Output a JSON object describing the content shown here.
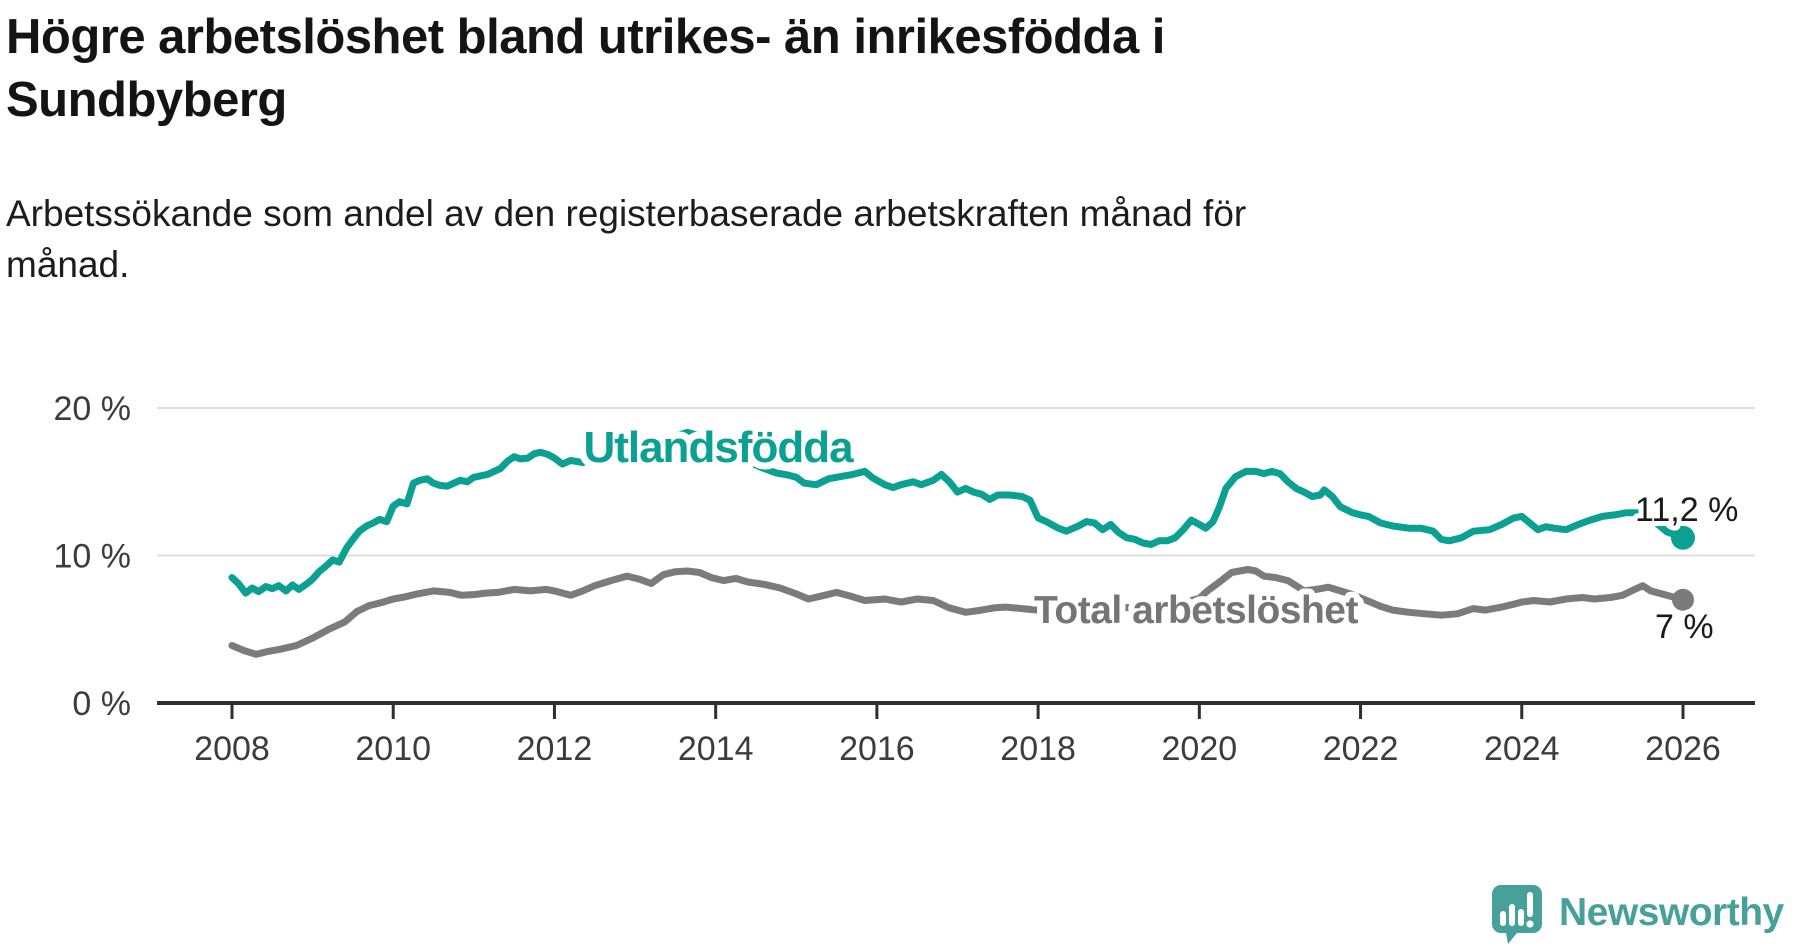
{
  "header": {
    "title_line1": "Högre arbetslöshet bland utrikes- än inrikesfödda i",
    "title_line2": "Sundbyberg",
    "subtitle_line1": "Arbetssökande som andel av den registerbaserade arbetskraften månad för",
    "subtitle_line2": "månad."
  },
  "footer": {
    "brand": "Newsworthy",
    "brand_color": "#47a19a"
  },
  "chart_data": {
    "type": "line",
    "title": "Högre arbetslöshet bland utrikes- än inrikesfödda i Sundbyberg",
    "subtitle": "Arbetssökande som andel av den registerbaserade arbetskraften månad för månad.",
    "unit": "%",
    "grid": "horizontal",
    "legend_position": "inline-labels",
    "xlim": [
      2007.1,
      2026.9
    ],
    "ylim": [
      0,
      21.5
    ],
    "x_ticks": [
      2008,
      2010,
      2012,
      2014,
      2016,
      2018,
      2020,
      2022,
      2024,
      2026
    ],
    "y_ticks": [
      {
        "label": "0 %",
        "value": 0
      },
      {
        "label": "10 %",
        "value": 10
      },
      {
        "label": "20 %",
        "value": 20
      }
    ],
    "colors": {
      "axis": "#2f2f2f",
      "gridline": "#dedede",
      "tick_text": "#3c3c3c",
      "end_label_text": "#1a1a1a"
    },
    "series": [
      {
        "name": "Utlandsfödda",
        "color": "#0aa092",
        "end_label": "11,2 %",
        "end_value": 11.2,
        "points": [
          [
            2008.0,
            8.5
          ],
          [
            2008.08,
            8.1
          ],
          [
            2008.17,
            7.45
          ],
          [
            2008.25,
            7.8
          ],
          [
            2008.33,
            7.55
          ],
          [
            2008.42,
            7.9
          ],
          [
            2008.5,
            7.75
          ],
          [
            2008.58,
            7.95
          ],
          [
            2008.67,
            7.6
          ],
          [
            2008.75,
            8.0
          ],
          [
            2008.83,
            7.7
          ],
          [
            2008.92,
            8.05
          ],
          [
            2009.0,
            8.4
          ],
          [
            2009.08,
            8.9
          ],
          [
            2009.17,
            9.3
          ],
          [
            2009.25,
            9.7
          ],
          [
            2009.33,
            9.55
          ],
          [
            2009.42,
            10.5
          ],
          [
            2009.5,
            11.1
          ],
          [
            2009.58,
            11.65
          ],
          [
            2009.67,
            12.0
          ],
          [
            2009.75,
            12.2
          ],
          [
            2009.83,
            12.45
          ],
          [
            2009.92,
            12.3
          ],
          [
            2010.0,
            13.35
          ],
          [
            2010.08,
            13.65
          ],
          [
            2010.17,
            13.5
          ],
          [
            2010.25,
            14.9
          ],
          [
            2010.33,
            15.1
          ],
          [
            2010.42,
            15.2
          ],
          [
            2010.5,
            14.9
          ],
          [
            2010.58,
            14.75
          ],
          [
            2010.67,
            14.7
          ],
          [
            2010.75,
            14.9
          ],
          [
            2010.83,
            15.1
          ],
          [
            2010.92,
            15.0
          ],
          [
            2011.0,
            15.3
          ],
          [
            2011.08,
            15.4
          ],
          [
            2011.17,
            15.5
          ],
          [
            2011.25,
            15.7
          ],
          [
            2011.33,
            15.9
          ],
          [
            2011.42,
            16.4
          ],
          [
            2011.5,
            16.7
          ],
          [
            2011.58,
            16.55
          ],
          [
            2011.67,
            16.6
          ],
          [
            2011.75,
            16.9
          ],
          [
            2011.83,
            17.0
          ],
          [
            2011.92,
            16.85
          ],
          [
            2012.0,
            16.6
          ],
          [
            2012.1,
            16.2
          ],
          [
            2012.2,
            16.45
          ],
          [
            2012.35,
            16.3
          ],
          [
            2012.5,
            16.55
          ],
          [
            2012.7,
            16.85
          ],
          [
            2012.9,
            17.1
          ],
          [
            2013.1,
            17.45
          ],
          [
            2013.3,
            17.75
          ],
          [
            2013.5,
            18.1
          ],
          [
            2013.65,
            18.35
          ],
          [
            2013.8,
            18.1
          ],
          [
            2014.0,
            17.5
          ],
          [
            2014.2,
            16.9
          ],
          [
            2014.4,
            16.35
          ],
          [
            2014.6,
            15.9
          ],
          [
            2014.75,
            15.6
          ],
          [
            2014.9,
            15.45
          ],
          [
            2015.0,
            15.3
          ],
          [
            2015.1,
            14.9
          ],
          [
            2015.25,
            14.8
          ],
          [
            2015.4,
            15.2
          ],
          [
            2015.55,
            15.35
          ],
          [
            2015.7,
            15.5
          ],
          [
            2015.85,
            15.7
          ],
          [
            2015.95,
            15.25
          ],
          [
            2016.1,
            14.8
          ],
          [
            2016.2,
            14.6
          ],
          [
            2016.3,
            14.8
          ],
          [
            2016.45,
            15.0
          ],
          [
            2016.55,
            14.8
          ],
          [
            2016.7,
            15.1
          ],
          [
            2016.8,
            15.5
          ],
          [
            2016.9,
            15.0
          ],
          [
            2017.0,
            14.3
          ],
          [
            2017.1,
            14.55
          ],
          [
            2017.2,
            14.3
          ],
          [
            2017.3,
            14.15
          ],
          [
            2017.4,
            13.8
          ],
          [
            2017.5,
            14.1
          ],
          [
            2017.65,
            14.1
          ],
          [
            2017.8,
            14.0
          ],
          [
            2017.9,
            13.75
          ],
          [
            2018.0,
            12.55
          ],
          [
            2018.1,
            12.3
          ],
          [
            2018.25,
            11.85
          ],
          [
            2018.35,
            11.65
          ],
          [
            2018.5,
            12.0
          ],
          [
            2018.6,
            12.3
          ],
          [
            2018.7,
            12.2
          ],
          [
            2018.8,
            11.75
          ],
          [
            2018.9,
            12.1
          ],
          [
            2019.0,
            11.55
          ],
          [
            2019.1,
            11.2
          ],
          [
            2019.2,
            11.1
          ],
          [
            2019.3,
            10.85
          ],
          [
            2019.4,
            10.75
          ],
          [
            2019.5,
            11.0
          ],
          [
            2019.6,
            11.0
          ],
          [
            2019.7,
            11.2
          ],
          [
            2019.8,
            11.75
          ],
          [
            2019.9,
            12.4
          ],
          [
            2020.0,
            12.1
          ],
          [
            2020.08,
            11.85
          ],
          [
            2020.17,
            12.3
          ],
          [
            2020.25,
            13.3
          ],
          [
            2020.33,
            14.55
          ],
          [
            2020.45,
            15.35
          ],
          [
            2020.58,
            15.7
          ],
          [
            2020.7,
            15.7
          ],
          [
            2020.8,
            15.55
          ],
          [
            2020.9,
            15.7
          ],
          [
            2021.0,
            15.55
          ],
          [
            2021.1,
            15.0
          ],
          [
            2021.2,
            14.55
          ],
          [
            2021.3,
            14.3
          ],
          [
            2021.4,
            14.0
          ],
          [
            2021.5,
            14.1
          ],
          [
            2021.55,
            14.45
          ],
          [
            2021.65,
            14.0
          ],
          [
            2021.75,
            13.3
          ],
          [
            2021.9,
            12.9
          ],
          [
            2022.0,
            12.75
          ],
          [
            2022.1,
            12.65
          ],
          [
            2022.25,
            12.2
          ],
          [
            2022.4,
            12.0
          ],
          [
            2022.6,
            11.85
          ],
          [
            2022.75,
            11.85
          ],
          [
            2022.9,
            11.65
          ],
          [
            2023.0,
            11.1
          ],
          [
            2023.1,
            11.0
          ],
          [
            2023.25,
            11.2
          ],
          [
            2023.4,
            11.65
          ],
          [
            2023.6,
            11.75
          ],
          [
            2023.75,
            12.1
          ],
          [
            2023.9,
            12.55
          ],
          [
            2024.0,
            12.65
          ],
          [
            2024.1,
            12.2
          ],
          [
            2024.2,
            11.75
          ],
          [
            2024.3,
            11.95
          ],
          [
            2024.4,
            11.85
          ],
          [
            2024.55,
            11.75
          ],
          [
            2024.7,
            12.1
          ],
          [
            2024.85,
            12.4
          ],
          [
            2025.0,
            12.65
          ],
          [
            2025.15,
            12.75
          ],
          [
            2025.3,
            12.9
          ],
          [
            2025.5,
            12.9
          ],
          [
            2025.65,
            12.3
          ],
          [
            2025.8,
            11.6
          ],
          [
            2026.0,
            11.2
          ]
        ]
      },
      {
        "name": "Total arbetslöshet",
        "color": "#7b7b7b",
        "label_color": "#757575",
        "end_label": "7 %",
        "end_value": 7.0,
        "points": [
          [
            2008.0,
            3.9
          ],
          [
            2008.15,
            3.55
          ],
          [
            2008.3,
            3.3
          ],
          [
            2008.45,
            3.5
          ],
          [
            2008.6,
            3.65
          ],
          [
            2008.8,
            3.9
          ],
          [
            2009.0,
            4.4
          ],
          [
            2009.2,
            5.0
          ],
          [
            2009.4,
            5.5
          ],
          [
            2009.55,
            6.2
          ],
          [
            2009.7,
            6.6
          ],
          [
            2009.85,
            6.8
          ],
          [
            2010.0,
            7.05
          ],
          [
            2010.15,
            7.2
          ],
          [
            2010.3,
            7.4
          ],
          [
            2010.5,
            7.6
          ],
          [
            2010.7,
            7.5
          ],
          [
            2010.85,
            7.3
          ],
          [
            2011.0,
            7.35
          ],
          [
            2011.15,
            7.45
          ],
          [
            2011.3,
            7.5
          ],
          [
            2011.5,
            7.7
          ],
          [
            2011.7,
            7.6
          ],
          [
            2011.9,
            7.7
          ],
          [
            2012.0,
            7.6
          ],
          [
            2012.2,
            7.3
          ],
          [
            2012.35,
            7.6
          ],
          [
            2012.5,
            7.95
          ],
          [
            2012.7,
            8.3
          ],
          [
            2012.9,
            8.6
          ],
          [
            2013.05,
            8.4
          ],
          [
            2013.2,
            8.1
          ],
          [
            2013.35,
            8.7
          ],
          [
            2013.5,
            8.9
          ],
          [
            2013.65,
            8.95
          ],
          [
            2013.8,
            8.85
          ],
          [
            2013.95,
            8.5
          ],
          [
            2014.1,
            8.3
          ],
          [
            2014.25,
            8.45
          ],
          [
            2014.4,
            8.2
          ],
          [
            2014.6,
            8.05
          ],
          [
            2014.8,
            7.8
          ],
          [
            2015.0,
            7.4
          ],
          [
            2015.15,
            7.05
          ],
          [
            2015.35,
            7.3
          ],
          [
            2015.5,
            7.5
          ],
          [
            2015.7,
            7.2
          ],
          [
            2015.85,
            6.95
          ],
          [
            2016.1,
            7.05
          ],
          [
            2016.3,
            6.85
          ],
          [
            2016.5,
            7.05
          ],
          [
            2016.7,
            6.95
          ],
          [
            2016.9,
            6.45
          ],
          [
            2017.1,
            6.15
          ],
          [
            2017.3,
            6.3
          ],
          [
            2017.45,
            6.45
          ],
          [
            2017.6,
            6.5
          ],
          [
            2017.8,
            6.4
          ],
          [
            2018.0,
            6.3
          ],
          [
            2018.3,
            6.2
          ],
          [
            2018.6,
            6.3
          ],
          [
            2018.9,
            6.4
          ],
          [
            2019.2,
            6.5
          ],
          [
            2019.5,
            6.6
          ],
          [
            2019.8,
            6.8
          ],
          [
            2020.0,
            7.1
          ],
          [
            2020.1,
            7.6
          ],
          [
            2020.25,
            8.2
          ],
          [
            2020.4,
            8.85
          ],
          [
            2020.6,
            9.05
          ],
          [
            2020.7,
            8.95
          ],
          [
            2020.8,
            8.6
          ],
          [
            2020.95,
            8.5
          ],
          [
            2021.1,
            8.3
          ],
          [
            2021.2,
            7.95
          ],
          [
            2021.3,
            7.6
          ],
          [
            2021.45,
            7.7
          ],
          [
            2021.6,
            7.85
          ],
          [
            2021.75,
            7.6
          ],
          [
            2021.9,
            7.35
          ],
          [
            2022.1,
            6.9
          ],
          [
            2022.25,
            6.55
          ],
          [
            2022.4,
            6.3
          ],
          [
            2022.6,
            6.15
          ],
          [
            2022.8,
            6.05
          ],
          [
            2023.0,
            5.95
          ],
          [
            2023.2,
            6.05
          ],
          [
            2023.4,
            6.4
          ],
          [
            2023.55,
            6.3
          ],
          [
            2023.75,
            6.5
          ],
          [
            2023.9,
            6.7
          ],
          [
            2024.0,
            6.85
          ],
          [
            2024.15,
            6.95
          ],
          [
            2024.35,
            6.85
          ],
          [
            2024.55,
            7.05
          ],
          [
            2024.75,
            7.15
          ],
          [
            2024.9,
            7.05
          ],
          [
            2025.1,
            7.15
          ],
          [
            2025.25,
            7.3
          ],
          [
            2025.4,
            7.7
          ],
          [
            2025.5,
            7.95
          ],
          [
            2025.6,
            7.6
          ],
          [
            2025.8,
            7.3
          ],
          [
            2026.0,
            7.0
          ]
        ]
      }
    ]
  }
}
